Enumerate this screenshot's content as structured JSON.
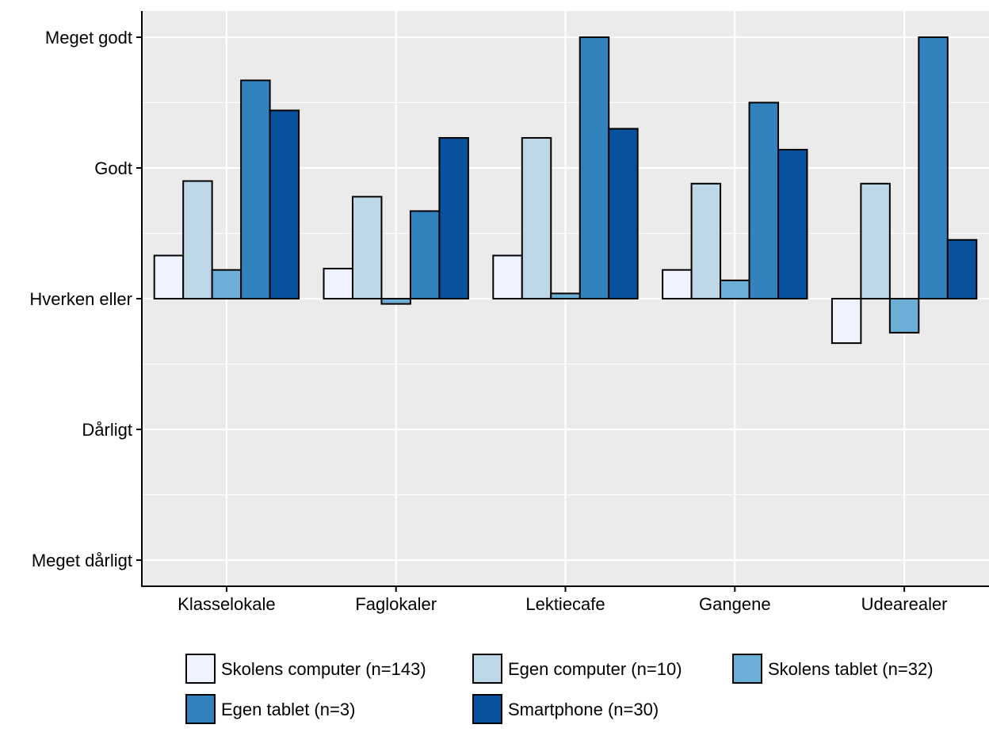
{
  "chart_data": {
    "type": "bar",
    "categories": [
      "Klasselokale",
      "Faglokaler",
      "Lektiecafe",
      "Gangene",
      "Udearealer"
    ],
    "y_tick_labels": [
      "Meget dårligt",
      "Dårligt",
      "Hverken eller",
      "Godt",
      "Meget godt"
    ],
    "y_tick_values": [
      -2,
      -1,
      0,
      1,
      2
    ],
    "ylim": [
      -2.2,
      2.2
    ],
    "baseline": 0,
    "grid": true,
    "legend_position": "bottom",
    "series": [
      {
        "name": "Skolens computer (n=143)",
        "color": "#eff3ff",
        "values": [
          0.33,
          0.23,
          0.33,
          0.22,
          -0.34
        ]
      },
      {
        "name": "Egen computer (n=10)",
        "color": "#bdd7e7",
        "values": [
          0.9,
          0.78,
          1.23,
          0.88,
          0.88
        ]
      },
      {
        "name": "Skolens tablet (n=32)",
        "color": "#6baed6",
        "values": [
          0.22,
          -0.04,
          0.04,
          0.14,
          -0.26
        ]
      },
      {
        "name": "Egen tablet (n=3)",
        "color": "#3182bd",
        "values": [
          1.67,
          0.67,
          2.0,
          1.5,
          2.0
        ]
      },
      {
        "name": "Smartphone (n=30)",
        "color": "#08519c",
        "values": [
          1.44,
          1.23,
          1.3,
          1.14,
          0.45
        ]
      }
    ]
  }
}
